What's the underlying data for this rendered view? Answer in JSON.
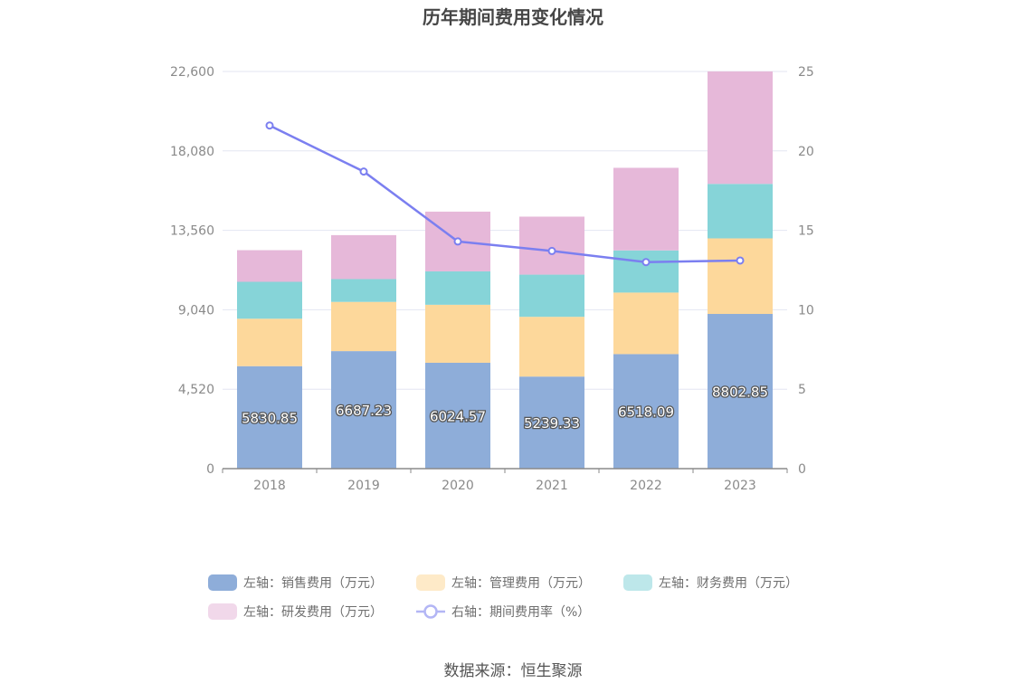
{
  "chart_data": {
    "type": "bar",
    "title": "历年期间费用变化情况",
    "categories": [
      "2018",
      "2019",
      "2020",
      "2021",
      "2022",
      "2023"
    ],
    "stacked": true,
    "series": [
      {
        "name": "左轴：销售费用（万元）",
        "axis": "left",
        "color": "#8eadd9",
        "values": [
          5830.85,
          6687.23,
          6024.57,
          5239.33,
          6518.09,
          8802.85
        ]
      },
      {
        "name": "左轴：管理费用（万元）",
        "axis": "left",
        "color": "#fdd89b",
        "values": [
          2700,
          2800,
          3300,
          3400,
          3500,
          4300
        ]
      },
      {
        "name": "左轴：财务费用（万元）",
        "axis": "left",
        "color": "#86d4d8",
        "values": [
          2100,
          1300,
          1900,
          2400,
          2400,
          3100
        ]
      },
      {
        "name": "左轴：研发费用（万元）",
        "axis": "left",
        "color": "#e6b8d9",
        "values": [
          1800,
          2500,
          3400,
          3300,
          4700,
          6400
        ]
      },
      {
        "name": "右轴：期间费用率（%）",
        "axis": "right",
        "type": "line",
        "color": "#7b7ff0",
        "values": [
          21.6,
          18.7,
          14.3,
          13.7,
          13.0,
          13.1
        ]
      }
    ],
    "y_left": {
      "ticks": [
        "0",
        "4,520",
        "9,040",
        "13,560",
        "18,080",
        "22,600"
      ],
      "ylim": [
        0,
        22600
      ]
    },
    "y_right": {
      "ticks": [
        "0",
        "5",
        "10",
        "15",
        "20",
        "25"
      ],
      "ylim": [
        0,
        25
      ]
    },
    "data_labels_series": 0,
    "legend_position": "bottom",
    "source": "数据来源：恒生聚源"
  }
}
